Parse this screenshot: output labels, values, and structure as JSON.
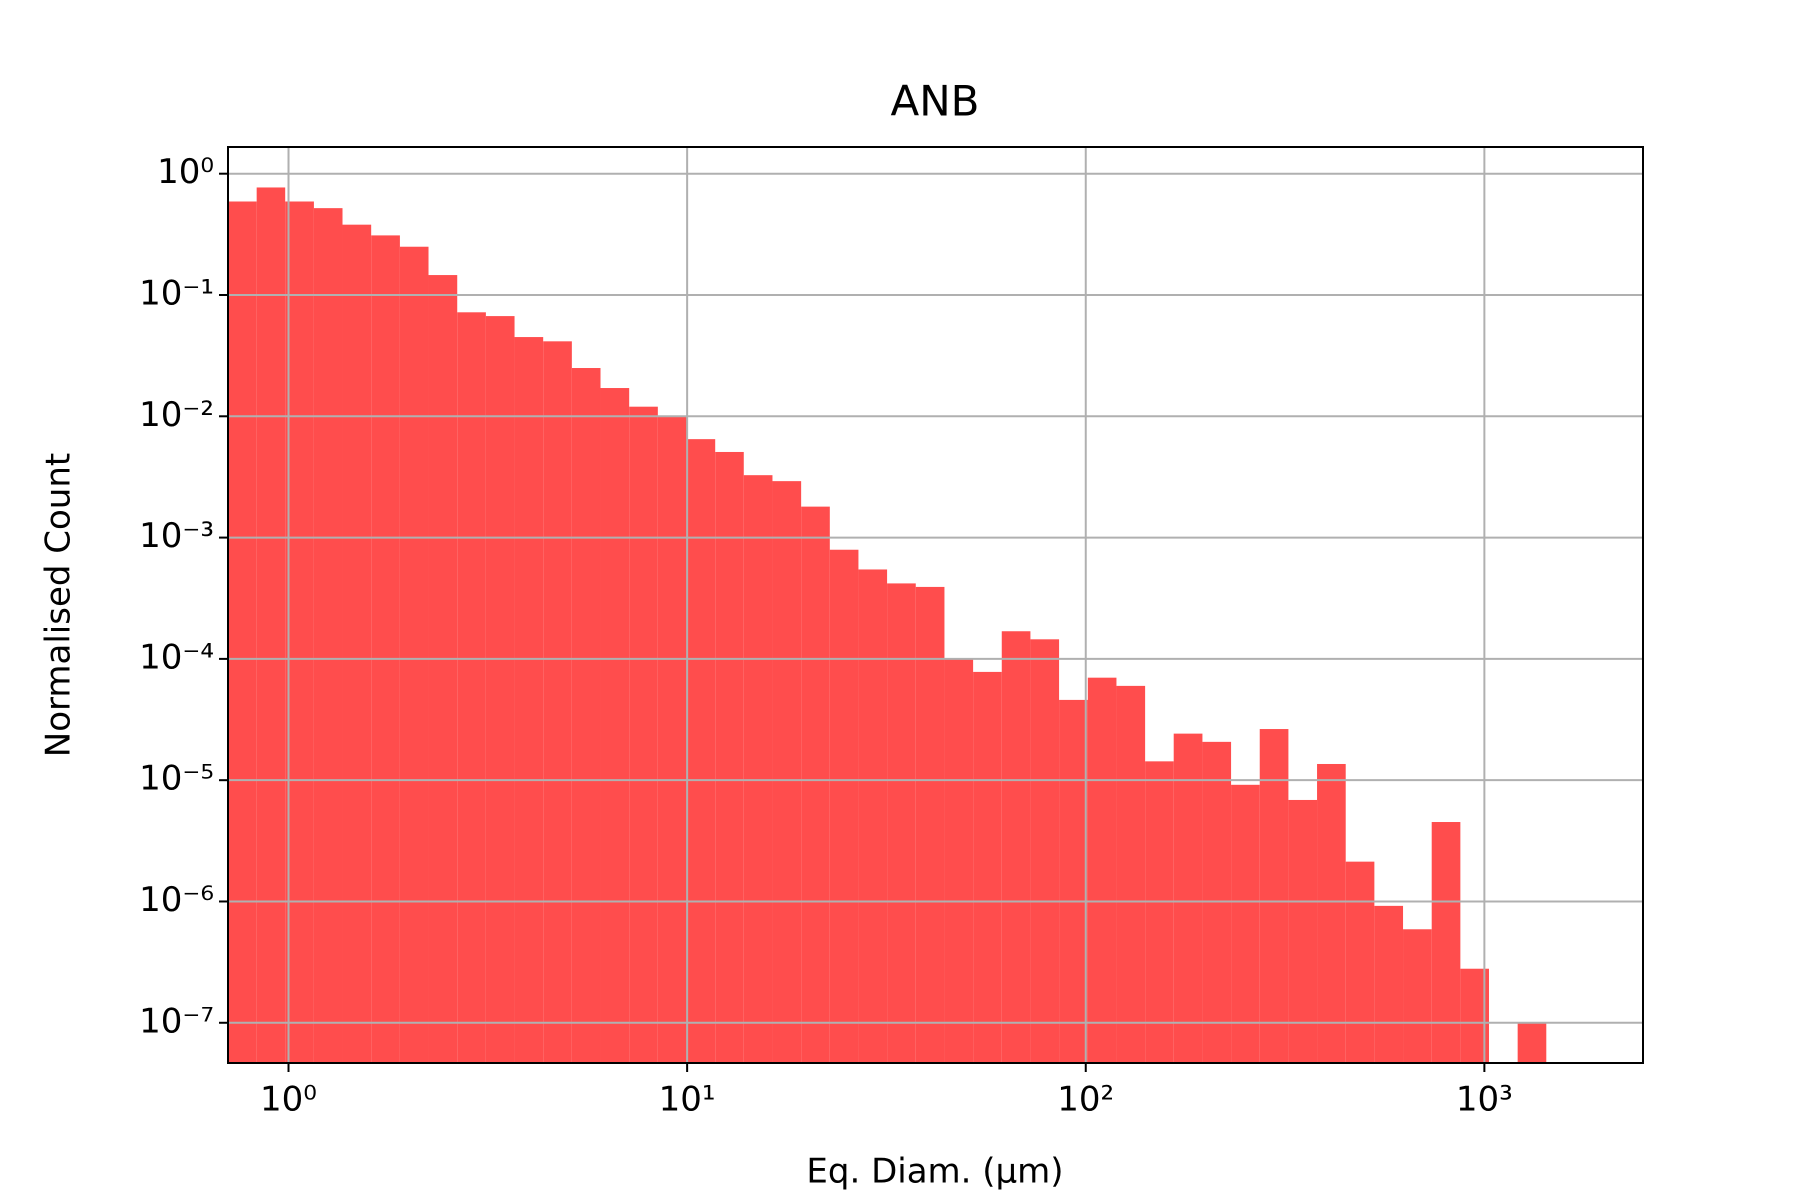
{
  "chart_data": {
    "type": "histogram",
    "title": "ANB",
    "x_label": "Eq. Diam. (μm)",
    "y_label": "Normalised Count",
    "bins": [
      0.705,
      0.832,
      0.981,
      1.158,
      1.366,
      1.612,
      1.903,
      2.245,
      2.65,
      3.127,
      3.69,
      4.354,
      5.138,
      6.063,
      7.155,
      8.443,
      9.963,
      11.76,
      13.87,
      16.37,
      19.32,
      22.8,
      26.9,
      31.74,
      37.46,
      44.21,
      52.17,
      61.56,
      72.64,
      85.72,
      101.2,
      119.4,
      140.9,
      166.2,
      196.2,
      231.5,
      273.2,
      322.4,
      380.4,
      448.9,
      529.7,
      625.1,
      737.7,
      870.5,
      1027,
      1212,
      1430
    ],
    "values": [
      0.59,
      0.77,
      0.59,
      0.52,
      0.38,
      0.31,
      0.25,
      0.146,
      0.072,
      0.067,
      0.045,
      0.0415,
      0.025,
      0.0171,
      0.012,
      0.0101,
      0.00648,
      0.00508,
      0.00327,
      0.00292,
      0.0018,
      0.000794,
      0.000546,
      0.000419,
      0.000392,
      9.95e-05,
      7.81e-05,
      0.000169,
      0.000145,
      4.59e-05,
      7e-05,
      5.99e-05,
      1.43e-05,
      2.42e-05,
      2.07e-05,
      9.16e-06,
      2.64e-05,
      6.87e-06,
      1.36e-05,
      2.13e-06,
      9.2e-07,
      5.9e-07,
      4.52e-06,
      2.79e-07,
      0,
      9.9e-08
    ],
    "color": "#ff4d4d",
    "xscale": "log",
    "yscale": "log",
    "grid": true,
    "xlim": [
      0.705,
      2500
    ],
    "ylim": [
      4.66e-08,
      1.66
    ],
    "xticks": [
      {
        "value": 1,
        "label": "10⁰"
      },
      {
        "value": 10,
        "label": "10¹"
      },
      {
        "value": 100,
        "label": "10²"
      },
      {
        "value": 1000,
        "label": "10³"
      }
    ],
    "yticks": [
      {
        "value": 1,
        "label": "10⁰"
      },
      {
        "value": 0.1,
        "label": "10⁻¹"
      },
      {
        "value": 0.01,
        "label": "10⁻²"
      },
      {
        "value": 0.001,
        "label": "10⁻³"
      },
      {
        "value": 0.0001,
        "label": "10⁻⁴"
      },
      {
        "value": 1e-05,
        "label": "10⁻⁵"
      },
      {
        "value": 1e-06,
        "label": "10⁻⁶"
      },
      {
        "value": 1e-07,
        "label": "10⁻⁷"
      }
    ]
  }
}
